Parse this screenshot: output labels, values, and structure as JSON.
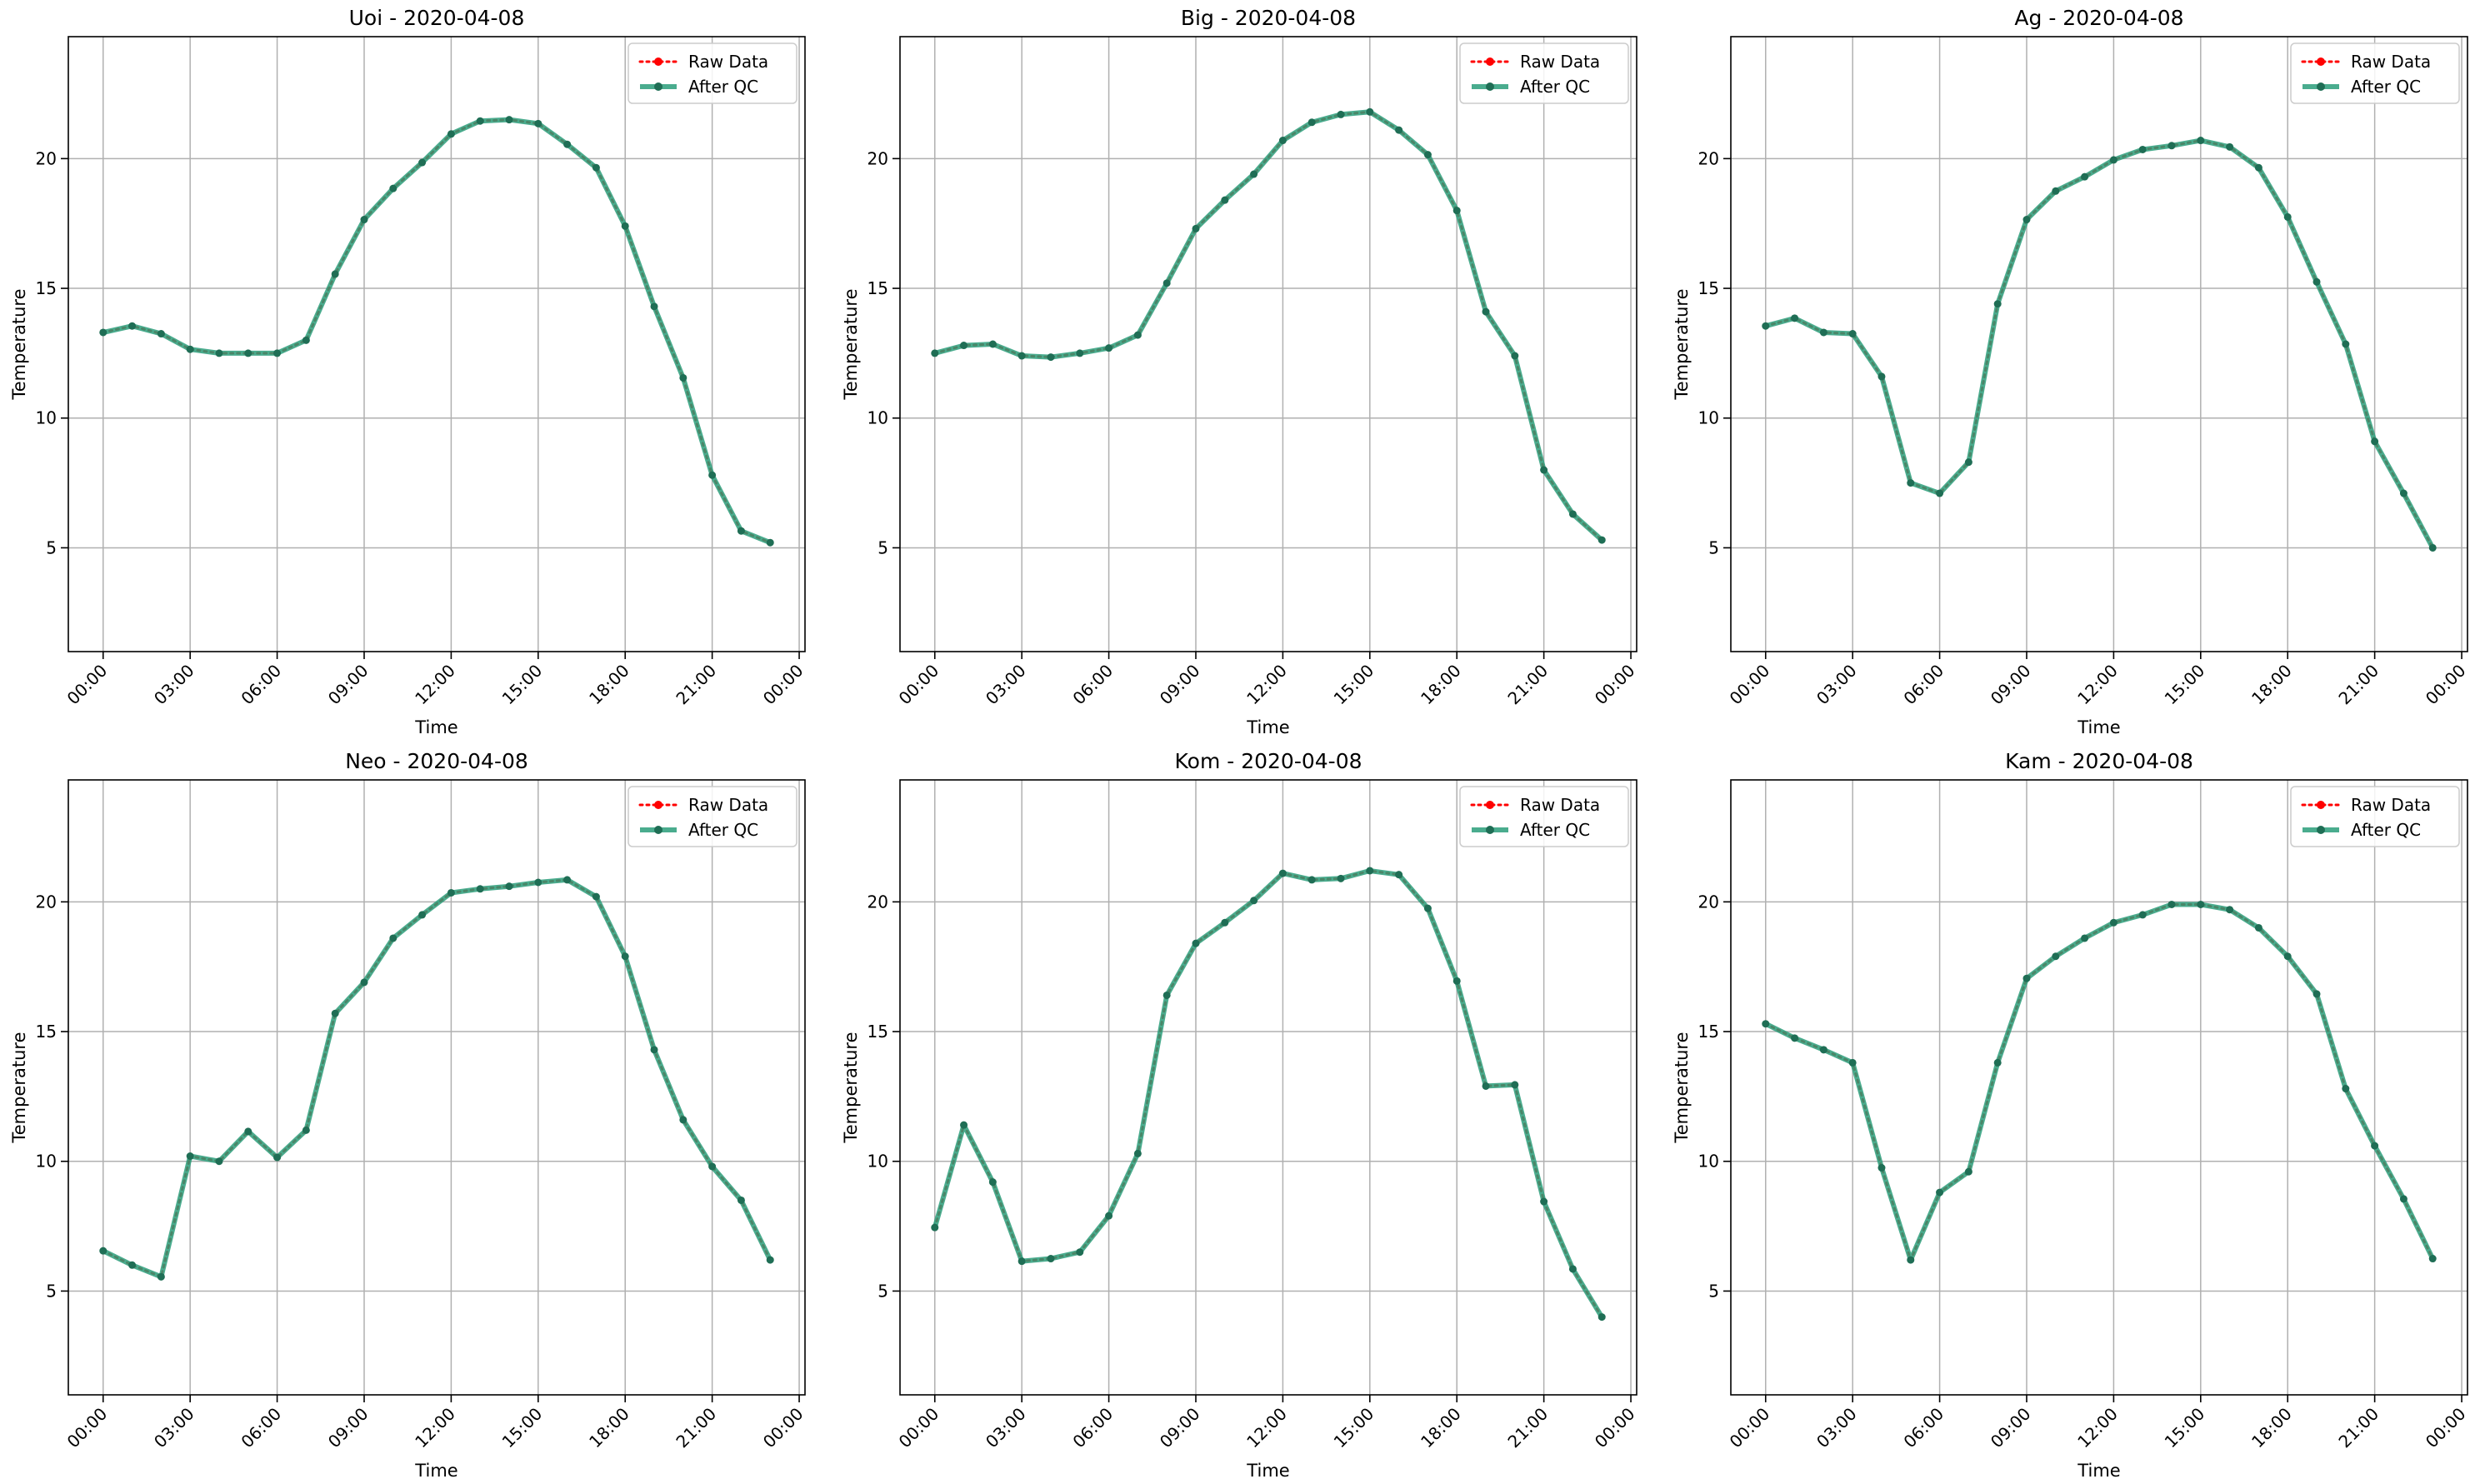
{
  "figure": {
    "axis_ylabel": "Temperature",
    "axis_xlabel": "Time",
    "legend": {
      "raw_label": "Raw Data",
      "qc_label": "After QC"
    },
    "colors": {
      "raw": "#ff0000",
      "qc": "#2a9d7a",
      "qc_marker": "#1f6e55",
      "grid": "#b0b0b0",
      "axes": "#000000"
    }
  },
  "chart_data": [
    {
      "type": "line",
      "title": "Uoi - 2020-04-08",
      "xlabel": "Time",
      "ylabel": "Temperature",
      "xlim": [
        -1.2,
        24.2
      ],
      "ylim": [
        1,
        24.7
      ],
      "x_ticks": [
        0,
        3,
        6,
        9,
        12,
        15,
        18,
        21,
        24
      ],
      "x_tick_labels": [
        "00:00",
        "03:00",
        "06:00",
        "09:00",
        "12:00",
        "15:00",
        "18:00",
        "21:00",
        "00:00"
      ],
      "y_ticks": [
        5,
        10,
        15,
        20
      ],
      "grid": true,
      "legend_position": "top-right",
      "x": [
        0,
        1,
        2,
        3,
        4,
        5,
        6,
        7,
        8,
        9,
        10,
        11,
        12,
        13,
        14,
        15,
        16,
        17,
        18,
        19,
        20,
        21,
        22,
        23
      ],
      "series": [
        {
          "name": "Raw Data",
          "values": [
            13.3,
            13.55,
            13.25,
            12.65,
            12.5,
            12.5,
            12.5,
            13.0,
            15.55,
            17.65,
            18.85,
            19.85,
            20.95,
            21.45,
            21.5,
            21.35,
            20.55,
            19.65,
            17.4,
            14.3,
            11.55,
            7.8,
            5.65,
            5.2
          ]
        },
        {
          "name": "After QC",
          "values": [
            13.3,
            13.55,
            13.25,
            12.65,
            12.5,
            12.5,
            12.5,
            13.0,
            15.55,
            17.65,
            18.85,
            19.85,
            20.95,
            21.45,
            21.5,
            21.35,
            20.55,
            19.65,
            17.4,
            14.3,
            11.55,
            7.8,
            5.65,
            5.2
          ]
        }
      ]
    },
    {
      "type": "line",
      "title": "Big - 2020-04-08",
      "xlabel": "Time",
      "ylabel": "Temperature",
      "xlim": [
        -1.2,
        24.2
      ],
      "ylim": [
        1,
        24.7
      ],
      "x_ticks": [
        0,
        3,
        6,
        9,
        12,
        15,
        18,
        21,
        24
      ],
      "x_tick_labels": [
        "00:00",
        "03:00",
        "06:00",
        "09:00",
        "12:00",
        "15:00",
        "18:00",
        "21:00",
        "00:00"
      ],
      "y_ticks": [
        5,
        10,
        15,
        20
      ],
      "grid": true,
      "legend_position": "top-right",
      "x": [
        0,
        1,
        2,
        3,
        4,
        5,
        6,
        7,
        8,
        9,
        10,
        11,
        12,
        13,
        14,
        15,
        16,
        17,
        18,
        19,
        20,
        21,
        22,
        23
      ],
      "series": [
        {
          "name": "Raw Data",
          "values": [
            12.5,
            12.8,
            12.85,
            12.4,
            12.35,
            12.5,
            12.7,
            13.2,
            15.2,
            17.3,
            18.4,
            19.4,
            20.7,
            21.4,
            21.7,
            21.8,
            21.1,
            20.15,
            18.0,
            14.1,
            12.4,
            8.0,
            6.3,
            5.3
          ]
        },
        {
          "name": "After QC",
          "values": [
            12.5,
            12.8,
            12.85,
            12.4,
            12.35,
            12.5,
            12.7,
            13.2,
            15.2,
            17.3,
            18.4,
            19.4,
            20.7,
            21.4,
            21.7,
            21.8,
            21.1,
            20.15,
            18.0,
            14.1,
            12.4,
            8.0,
            6.3,
            5.3
          ]
        }
      ]
    },
    {
      "type": "line",
      "title": "Ag - 2020-04-08",
      "xlabel": "Time",
      "ylabel": "Temperature",
      "xlim": [
        -1.2,
        24.2
      ],
      "ylim": [
        1,
        24.7
      ],
      "x_ticks": [
        0,
        3,
        6,
        9,
        12,
        15,
        18,
        21,
        24
      ],
      "x_tick_labels": [
        "00:00",
        "03:00",
        "06:00",
        "09:00",
        "12:00",
        "15:00",
        "18:00",
        "21:00",
        "00:00"
      ],
      "y_ticks": [
        5,
        10,
        15,
        20
      ],
      "grid": true,
      "legend_position": "top-right",
      "x": [
        0,
        1,
        2,
        3,
        4,
        5,
        6,
        7,
        8,
        9,
        10,
        11,
        12,
        13,
        14,
        15,
        16,
        17,
        18,
        19,
        20,
        21,
        22,
        23
      ],
      "series": [
        {
          "name": "Raw Data",
          "values": [
            13.55,
            13.85,
            13.3,
            13.25,
            11.6,
            7.5,
            7.1,
            8.3,
            14.4,
            17.65,
            18.75,
            19.3,
            19.95,
            20.35,
            20.5,
            20.7,
            20.45,
            19.65,
            17.75,
            15.25,
            12.85,
            9.1,
            7.1,
            5.0
          ]
        },
        {
          "name": "After QC",
          "values": [
            13.55,
            13.85,
            13.3,
            13.25,
            11.6,
            7.5,
            7.1,
            8.3,
            14.4,
            17.65,
            18.75,
            19.3,
            19.95,
            20.35,
            20.5,
            20.7,
            20.45,
            19.65,
            17.75,
            15.25,
            12.85,
            9.1,
            7.1,
            5.0
          ]
        }
      ]
    },
    {
      "type": "line",
      "title": "Neo - 2020-04-08",
      "xlabel": "Time",
      "ylabel": "Temperature",
      "xlim": [
        -1.2,
        24.2
      ],
      "ylim": [
        1,
        24.7
      ],
      "x_ticks": [
        0,
        3,
        6,
        9,
        12,
        15,
        18,
        21,
        24
      ],
      "x_tick_labels": [
        "00:00",
        "03:00",
        "06:00",
        "09:00",
        "12:00",
        "15:00",
        "18:00",
        "21:00",
        "00:00"
      ],
      "y_ticks": [
        5,
        10,
        15,
        20
      ],
      "grid": true,
      "legend_position": "top-right",
      "x": [
        0,
        1,
        2,
        3,
        4,
        5,
        6,
        7,
        8,
        9,
        10,
        11,
        12,
        13,
        14,
        15,
        16,
        17,
        18,
        19,
        20,
        21,
        22,
        23
      ],
      "series": [
        {
          "name": "Raw Data",
          "values": [
            6.55,
            6.0,
            5.55,
            10.2,
            10.0,
            11.15,
            10.15,
            11.2,
            15.7,
            16.9,
            18.6,
            19.5,
            20.35,
            20.5,
            20.6,
            20.75,
            20.85,
            20.2,
            17.9,
            14.3,
            11.6,
            9.8,
            8.5,
            6.2
          ]
        },
        {
          "name": "After QC",
          "values": [
            6.55,
            6.0,
            5.55,
            10.2,
            10.0,
            11.15,
            10.15,
            11.2,
            15.7,
            16.9,
            18.6,
            19.5,
            20.35,
            20.5,
            20.6,
            20.75,
            20.85,
            20.2,
            17.9,
            14.3,
            11.6,
            9.8,
            8.5,
            6.2
          ]
        }
      ]
    },
    {
      "type": "line",
      "title": "Kom - 2020-04-08",
      "xlabel": "Time",
      "ylabel": "Temperature",
      "xlim": [
        -1.2,
        24.2
      ],
      "ylim": [
        1,
        24.7
      ],
      "x_ticks": [
        0,
        3,
        6,
        9,
        12,
        15,
        18,
        21,
        24
      ],
      "x_tick_labels": [
        "00:00",
        "03:00",
        "06:00",
        "09:00",
        "12:00",
        "15:00",
        "18:00",
        "21:00",
        "00:00"
      ],
      "y_ticks": [
        5,
        10,
        15,
        20
      ],
      "grid": true,
      "legend_position": "top-right",
      "x": [
        0,
        1,
        2,
        3,
        4,
        5,
        6,
        7,
        8,
        9,
        10,
        11,
        12,
        13,
        14,
        15,
        16,
        17,
        18,
        19,
        20,
        21,
        22,
        23
      ],
      "series": [
        {
          "name": "Raw Data",
          "values": [
            7.45,
            11.4,
            9.2,
            6.15,
            6.25,
            6.5,
            7.9,
            10.3,
            16.4,
            18.4,
            19.2,
            20.05,
            21.1,
            20.85,
            20.9,
            21.2,
            21.05,
            19.75,
            16.95,
            12.9,
            12.95,
            8.45,
            5.85,
            4.0
          ]
        },
        {
          "name": "After QC",
          "values": [
            7.45,
            11.4,
            9.2,
            6.15,
            6.25,
            6.5,
            7.9,
            10.3,
            16.4,
            18.4,
            19.2,
            20.05,
            21.1,
            20.85,
            20.9,
            21.2,
            21.05,
            19.75,
            16.95,
            12.9,
            12.95,
            8.45,
            5.85,
            4.0
          ]
        }
      ]
    },
    {
      "type": "line",
      "title": "Kam - 2020-04-08",
      "xlabel": "Time",
      "ylabel": "Temperature",
      "xlim": [
        -1.2,
        24.2
      ],
      "ylim": [
        1,
        24.7
      ],
      "x_ticks": [
        0,
        3,
        6,
        9,
        12,
        15,
        18,
        21,
        24
      ],
      "x_tick_labels": [
        "00:00",
        "03:00",
        "06:00",
        "09:00",
        "12:00",
        "15:00",
        "18:00",
        "21:00",
        "00:00"
      ],
      "y_ticks": [
        5,
        10,
        15,
        20
      ],
      "grid": true,
      "legend_position": "top-right",
      "x": [
        0,
        1,
        2,
        3,
        4,
        5,
        6,
        7,
        8,
        9,
        10,
        11,
        12,
        13,
        14,
        15,
        16,
        17,
        18,
        19,
        20,
        21,
        22,
        23
      ],
      "series": [
        {
          "name": "Raw Data",
          "values": [
            15.3,
            14.75,
            14.3,
            13.8,
            9.75,
            6.2,
            8.8,
            9.6,
            13.8,
            17.05,
            17.9,
            18.6,
            19.2,
            19.5,
            19.9,
            19.9,
            19.7,
            19.0,
            17.9,
            16.45,
            12.8,
            10.6,
            8.55,
            6.25
          ]
        },
        {
          "name": "After QC",
          "values": [
            15.3,
            14.75,
            14.3,
            13.8,
            9.75,
            6.2,
            8.8,
            9.6,
            13.8,
            17.05,
            17.9,
            18.6,
            19.2,
            19.5,
            19.9,
            19.9,
            19.7,
            19.0,
            17.9,
            16.45,
            12.8,
            10.6,
            8.55,
            6.25
          ]
        }
      ]
    }
  ]
}
